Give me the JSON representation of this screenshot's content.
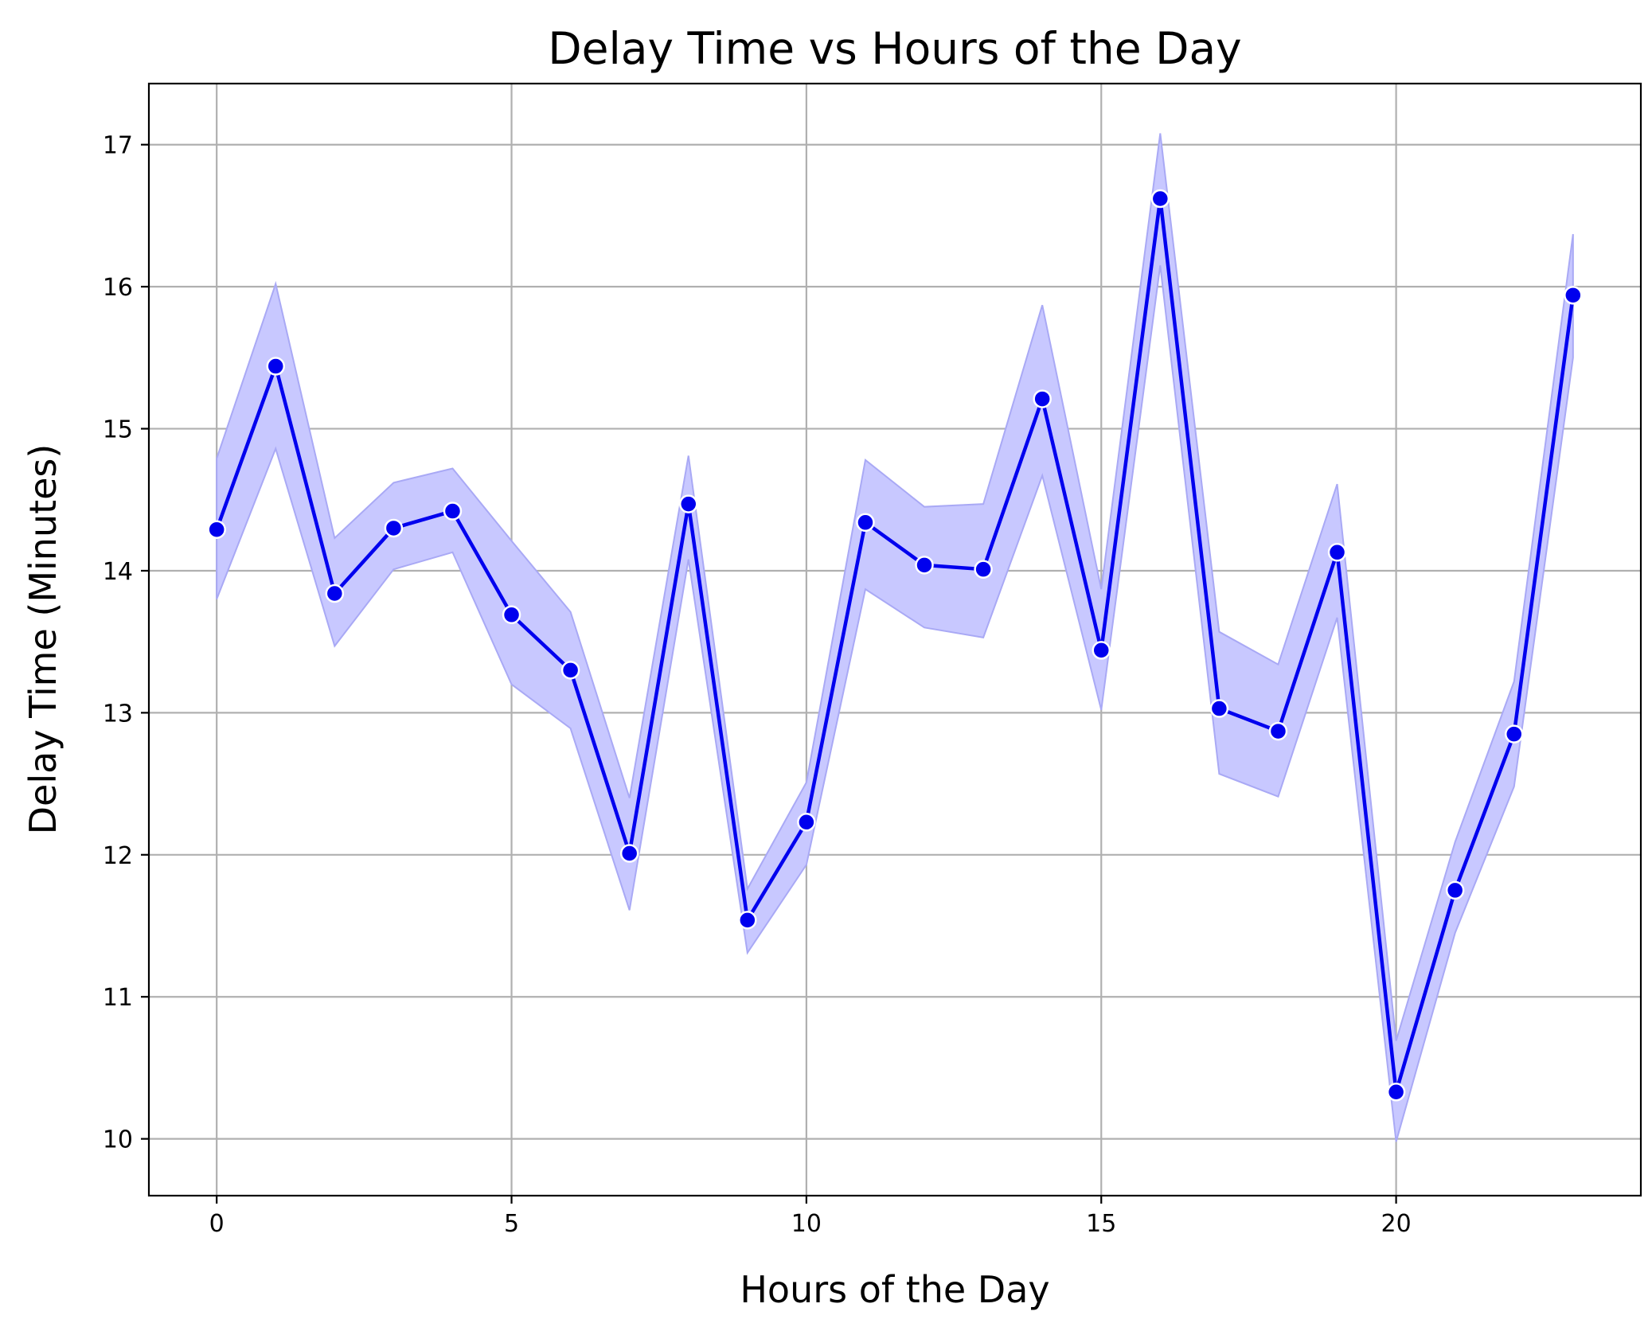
{
  "chart_data": {
    "type": "line",
    "title": "Delay Time vs Hours of the Day",
    "xlabel": "Hours of the Day",
    "ylabel": "Delay Time (Minutes)",
    "xlim": [
      -1.15,
      24.15
    ],
    "ylim": [
      9.6,
      17.43
    ],
    "xticks": [
      0,
      5,
      10,
      15,
      20
    ],
    "yticks": [
      10,
      11,
      12,
      13,
      14,
      15,
      16,
      17
    ],
    "grid": true,
    "legend": "none",
    "colors": {
      "line": "#0000ee",
      "point": "#0000ee",
      "band_fill": "#c8c8ff",
      "band_edge": "#a9a9f5"
    },
    "x": [
      0,
      1,
      2,
      3,
      4,
      5,
      6,
      7,
      8,
      9,
      10,
      11,
      12,
      13,
      14,
      15,
      16,
      17,
      18,
      19,
      20,
      21,
      22,
      23
    ],
    "series": [
      {
        "values": [
          14.29,
          15.44,
          13.84,
          14.3,
          14.42,
          13.69,
          13.3,
          12.01,
          14.47,
          11.54,
          12.23,
          14.34,
          14.04,
          14.01,
          15.21,
          13.44,
          16.62,
          13.03,
          12.87,
          14.13,
          10.33,
          11.75,
          12.85,
          15.94
        ],
        "ci_lower": [
          13.8,
          14.86,
          13.47,
          14.01,
          14.13,
          13.2,
          12.89,
          11.61,
          14.08,
          11.31,
          11.93,
          13.87,
          13.6,
          13.53,
          14.67,
          13.02,
          16.15,
          12.57,
          12.41,
          13.67,
          9.98,
          11.45,
          12.48,
          15.5
        ],
        "ci_upper": [
          14.79,
          16.02,
          14.23,
          14.62,
          14.72,
          14.21,
          13.71,
          12.4,
          14.81,
          11.76,
          12.51,
          14.78,
          14.45,
          14.47,
          15.87,
          13.87,
          17.08,
          13.57,
          13.34,
          14.61,
          10.69,
          12.09,
          13.22,
          16.37
        ]
      }
    ]
  }
}
